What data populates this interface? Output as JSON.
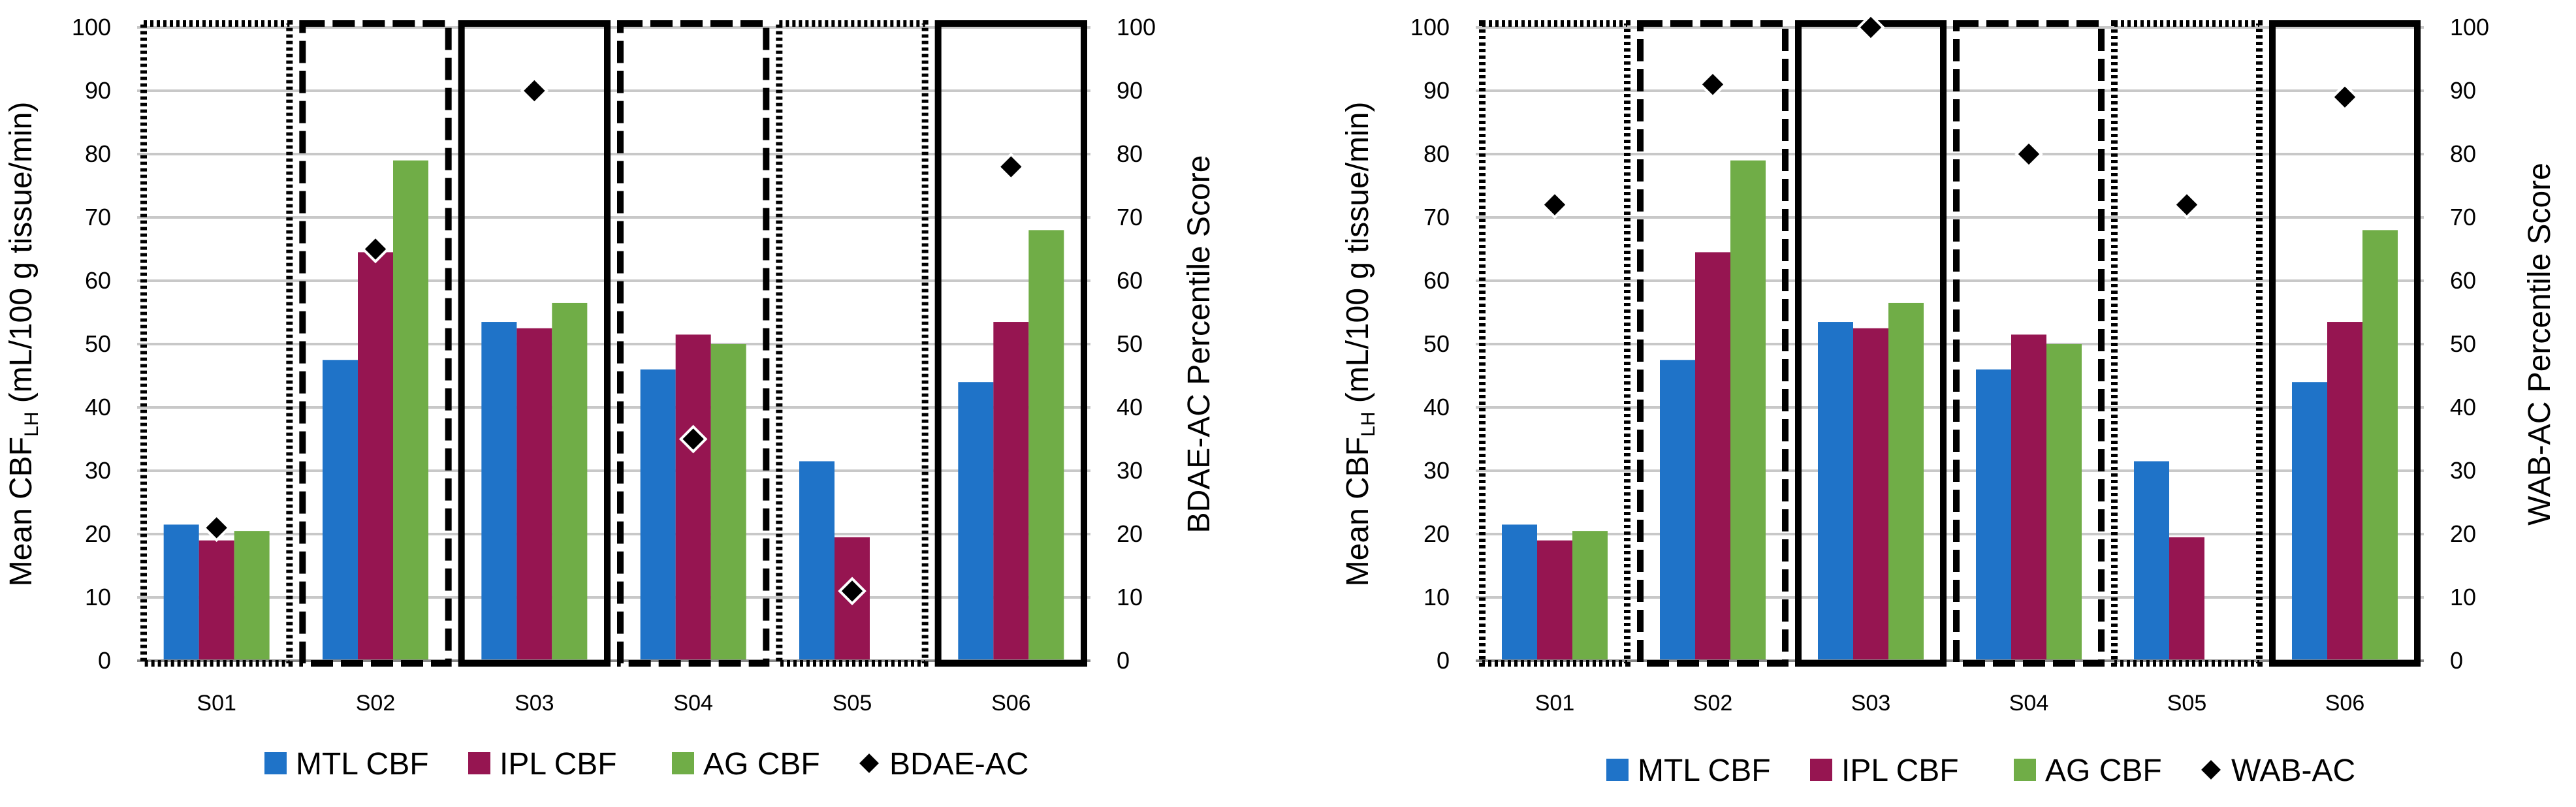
{
  "chart_data": [
    {
      "type": "bar",
      "categories": [
        "S01",
        "S02",
        "S03",
        "S04",
        "S05",
        "S06"
      ],
      "series": [
        {
          "name": "MTL CBF",
          "color": "#1f73c8",
          "values": [
            21.5,
            47.5,
            53.5,
            46,
            31.5,
            44
          ]
        },
        {
          "name": "IPL CBF",
          "color": "#961551",
          "values": [
            19,
            64.5,
            52.5,
            51.5,
            19.5,
            53.5
          ]
        },
        {
          "name": "AG CBF",
          "color": "#70ad47",
          "values": [
            20.5,
            79,
            56.5,
            50,
            null,
            68
          ]
        }
      ],
      "scatter": {
        "name": "BDAE-AC",
        "axis": "right",
        "values": [
          21,
          65,
          90,
          35,
          11,
          78
        ]
      },
      "group_borders": [
        "dotted",
        "dashed",
        "solid",
        "dashed",
        "dotted",
        "solid"
      ],
      "ylabel_left": {
        "main": "Mean CBF",
        "sub": "LH",
        "unit": " (mL/100 g tissue/min)"
      },
      "ylabel_right": "BDAE-AC Percentile Score",
      "ylim_left": [
        0,
        100
      ],
      "ylim_right": [
        0,
        100
      ],
      "yticks": [
        0,
        10,
        20,
        30,
        40,
        50,
        60,
        70,
        80,
        90,
        100
      ],
      "grid": true,
      "legend": [
        "MTL CBF",
        "IPL CBF",
        "AG CBF",
        "BDAE-AC"
      ],
      "legend_position": "bottom"
    },
    {
      "type": "bar",
      "categories": [
        "S01",
        "S02",
        "S03",
        "S04",
        "S05",
        "S06"
      ],
      "series": [
        {
          "name": "MTL CBF",
          "color": "#1f73c8",
          "values": [
            21.5,
            47.5,
            53.5,
            46,
            31.5,
            44
          ]
        },
        {
          "name": "IPL CBF",
          "color": "#961551",
          "values": [
            19,
            64.5,
            52.5,
            51.5,
            19.5,
            53.5
          ]
        },
        {
          "name": "AG CBF",
          "color": "#70ad47",
          "values": [
            20.5,
            79,
            56.5,
            50,
            null,
            68
          ]
        }
      ],
      "scatter": {
        "name": "WAB-AC",
        "axis": "right",
        "values": [
          72,
          91,
          100,
          80,
          72,
          89
        ]
      },
      "group_borders": [
        "dotted",
        "dashed",
        "solid",
        "dashed",
        "dotted",
        "solid"
      ],
      "ylabel_left": {
        "main": "Mean CBF",
        "sub": "LH",
        "unit": " (mL/100 g tissue/min)"
      },
      "ylabel_right": "WAB-AC Percentile Score",
      "ylim_left": [
        0,
        100
      ],
      "ylim_right": [
        0,
        100
      ],
      "yticks": [
        0,
        10,
        20,
        30,
        40,
        50,
        60,
        70,
        80,
        90,
        100
      ],
      "grid": true,
      "legend": [
        "MTL CBF",
        "IPL CBF",
        "AG CBF",
        "WAB-AC"
      ],
      "legend_position": "bottom"
    }
  ]
}
